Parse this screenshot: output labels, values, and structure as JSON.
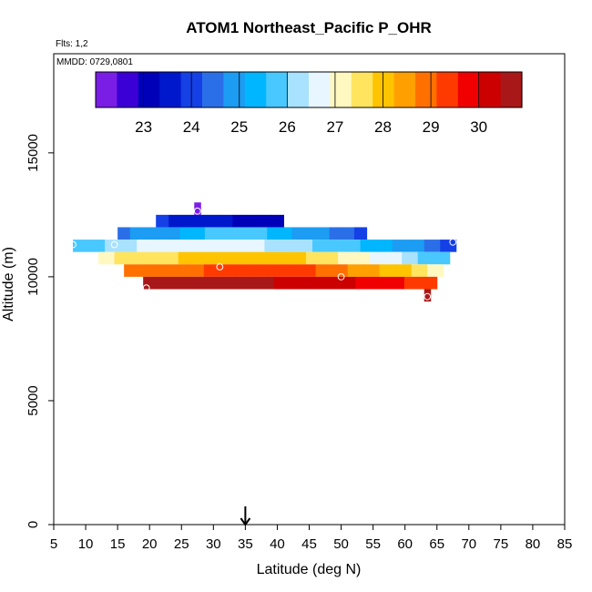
{
  "chart_data": {
    "type": "heatmap",
    "title": "ATOM1 Northeast_Pacific P_OHR",
    "flights_note": "Flts: 1,2",
    "date_note": "MMDD: 0729,0801",
    "xlabel": "Latitude (deg N)",
    "ylabel": "Altitude (m)",
    "xlim": [
      5,
      85
    ],
    "ylim": [
      0,
      19000
    ],
    "xticks": [
      "5",
      "10",
      "15",
      "20",
      "25",
      "30",
      "35",
      "40",
      "45",
      "50",
      "55",
      "60",
      "65",
      "70",
      "75",
      "80",
      "85"
    ],
    "yticks": [
      "0",
      "5000",
      "10000",
      "15000"
    ],
    "colorbar": {
      "range": [
        22,
        30.9
      ],
      "ticks": [
        "23",
        "24",
        "25",
        "26",
        "27",
        "28",
        "29",
        "30"
      ],
      "colors": [
        "#7a1ee6",
        "#3b00d6",
        "#0000b8",
        "#0018cc",
        "#1440e6",
        "#2b6fe8",
        "#1c9cf2",
        "#00b6ff",
        "#48c8ff",
        "#a8e2ff",
        "#e8f6ff",
        "#fff8c0",
        "#ffe460",
        "#ffc400",
        "#ffa000",
        "#ff7000",
        "#ff3a00",
        "#f00000",
        "#cc0000",
        "#a81818"
      ]
    },
    "marker": {
      "latitude": 35,
      "label": "arrow"
    },
    "bands": [
      {
        "altitude": 12750,
        "lat_start": 27,
        "lat_end": 28,
        "values": [
          22.3
        ]
      },
      {
        "altitude": 12250,
        "lat_start": 21,
        "lat_end": 41,
        "values": [
          23.8,
          23.7,
          23.6,
          23.5,
          23.4,
          23.4,
          23.3,
          23.2,
          23.1,
          23.0
        ]
      },
      {
        "altitude": 11750,
        "lat_start": 15,
        "lat_end": 54,
        "values": [
          24.6,
          24.7,
          24.9,
          25.0,
          25.1,
          25.3,
          25.5,
          25.6,
          25.7,
          25.8,
          25.7,
          25.6,
          25.4,
          25.3,
          25.1,
          25.0,
          24.8,
          24.6,
          24.3,
          24.0
        ]
      },
      {
        "altitude": 11250,
        "lat_start": 8,
        "lat_end": 68,
        "values": [
          25.8,
          25.9,
          26.1,
          26.3,
          26.5,
          26.6,
          26.7,
          26.8,
          26.8,
          26.7,
          26.6,
          26.5,
          26.4,
          26.3,
          26.2,
          26.0,
          25.8,
          25.6,
          25.4,
          25.2,
          25.0,
          24.8,
          24.5,
          24.2
        ]
      },
      {
        "altitude": 10750,
        "lat_start": 12,
        "lat_end": 67,
        "values": [
          27.3,
          27.4,
          27.5,
          27.6,
          27.7,
          27.8,
          27.9,
          28.0,
          28.0,
          28.1,
          28.0,
          27.9,
          27.8,
          27.6,
          27.4,
          27.2,
          27.0,
          26.8,
          26.6,
          26.3,
          26.0,
          25.8
        ]
      },
      {
        "altitude": 10250,
        "lat_start": 16,
        "lat_end": 66,
        "values": [
          28.7,
          28.8,
          28.9,
          29.0,
          29.1,
          29.2,
          29.3,
          29.4,
          29.5,
          29.4,
          29.3,
          29.2,
          29.0,
          28.8,
          28.6,
          28.4,
          28.1,
          27.8,
          27.5,
          27.3
        ]
      },
      {
        "altitude": 9750,
        "lat_start": 19,
        "lat_end": 65,
        "values": [
          30.8,
          30.8,
          30.7,
          30.7,
          30.6,
          30.6,
          30.5,
          30.5,
          30.4,
          30.4,
          30.3,
          30.2,
          30.1,
          30.0,
          29.9,
          29.7,
          29.5,
          29.3
        ]
      },
      {
        "altitude": 9250,
        "lat_start": 63,
        "lat_end": 64,
        "values": [
          30.8
        ]
      }
    ],
    "points": [
      {
        "lat": 8,
        "alt": 11300
      },
      {
        "lat": 14.5,
        "alt": 11300
      },
      {
        "lat": 27.5,
        "alt": 12650
      },
      {
        "lat": 31,
        "alt": 10400
      },
      {
        "lat": 50,
        "alt": 10000
      },
      {
        "lat": 19.5,
        "alt": 9550
      },
      {
        "lat": 63.5,
        "alt": 9200
      },
      {
        "lat": 67.5,
        "alt": 11400
      }
    ]
  }
}
